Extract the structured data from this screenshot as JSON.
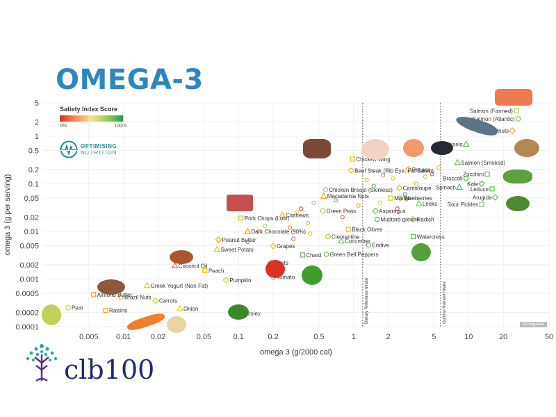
{
  "header": {
    "title": "OMEGA-3"
  },
  "legend": {
    "title": "Satiety Index Score",
    "min": "0%",
    "max": "100%"
  },
  "brand": {
    "line1": "OPTIMISING",
    "line2": "NUTRITION"
  },
  "footer_logo": {
    "text": "clb100"
  },
  "negative_badge": "20 negative",
  "reference_lines": [
    {
      "x": 1.2,
      "label": "Dietary Reference Intake"
    },
    {
      "x": 5.7,
      "label": "Optimal Nutrient Intake"
    }
  ],
  "colors": {
    "title": "#2e86c1",
    "low": "#d73027",
    "mid": "#f39c12",
    "high": "#1a9850"
  },
  "chart_data": {
    "type": "scatter",
    "xscale": "log",
    "yscale": "log",
    "xlabel": "omega 3 (g/2000 cal)",
    "ylabel": "omega 3 (g per serving)",
    "xlim": [
      0.002,
      50
    ],
    "ylim": [
      0.0001,
      5
    ],
    "xticks": [
      {
        "v": 0.005,
        "t": "0.005"
      },
      {
        "v": 0.01,
        "t": "0.01"
      },
      {
        "v": 0.02,
        "t": "0.02"
      },
      {
        "v": 0.05,
        "t": "0.05"
      },
      {
        "v": 0.1,
        "t": "0.1"
      },
      {
        "v": 0.2,
        "t": "0.2"
      },
      {
        "v": 0.5,
        "t": "0.5"
      },
      {
        "v": 1,
        "t": "1"
      },
      {
        "v": 2,
        "t": "2"
      },
      {
        "v": 5,
        "t": "5"
      },
      {
        "v": 10,
        "t": "10"
      },
      {
        "v": 20,
        "t": "20"
      },
      {
        "v": 50,
        "t": "50"
      }
    ],
    "yticks": [
      {
        "v": 0.0001,
        "t": "0.0001"
      },
      {
        "v": 0.0002,
        "t": "0.0002"
      },
      {
        "v": 0.0005,
        "t": "0.0005"
      },
      {
        "v": 0.001,
        "t": "0.001"
      },
      {
        "v": 0.002,
        "t": "0.002"
      },
      {
        "v": 0.005,
        "t": "0.005"
      },
      {
        "v": 0.01,
        "t": "0.01"
      },
      {
        "v": 0.02,
        "t": "0.02"
      },
      {
        "v": 0.05,
        "t": "0.05"
      },
      {
        "v": 0.1,
        "t": "0.1"
      },
      {
        "v": 0.2,
        "t": "0.2"
      },
      {
        "v": 0.5,
        "t": "0.5"
      },
      {
        "v": 1,
        "t": "1"
      },
      {
        "v": 2,
        "t": "2"
      },
      {
        "v": 5,
        "t": "5"
      }
    ],
    "points": [
      {
        "name": "Salmon (Farmed)",
        "x": 26,
        "y": 3.4,
        "s": 0.7
      },
      {
        "name": "Salmon (Atlantic)",
        "x": 27,
        "y": 2.3,
        "s": 0.8
      },
      {
        "name": "Walnuts",
        "x": 24,
        "y": 1.3,
        "s": 0.4
      },
      {
        "name": "Mussels",
        "x": 9.5,
        "y": 0.68,
        "s": 0.85
      },
      {
        "name": "Chicken Wing",
        "x": 0.98,
        "y": 0.33,
        "s": 0.55
      },
      {
        "name": "Beef Steak (Rib Eye, Fat Eaten)",
        "x": 0.95,
        "y": 0.19,
        "s": 0.6
      },
      {
        "name": "Pecans",
        "x": 3.0,
        "y": 0.2,
        "s": 0.35
      },
      {
        "name": "Salmon (Smoked)",
        "x": 8.0,
        "y": 0.28,
        "s": 0.8
      },
      {
        "name": "Zucchini",
        "x": 14.5,
        "y": 0.16,
        "s": 0.85
      },
      {
        "name": "Broccoli",
        "x": 9.5,
        "y": 0.13,
        "s": 0.85
      },
      {
        "name": "Kale",
        "x": 13,
        "y": 0.1,
        "s": 0.85
      },
      {
        "name": "Spinach",
        "x": 8.3,
        "y": 0.085,
        "s": 0.9
      },
      {
        "name": "Lettuce",
        "x": 16,
        "y": 0.078,
        "s": 0.85
      },
      {
        "name": "Chicken Breast (Skinless)",
        "x": 0.57,
        "y": 0.075,
        "s": 0.6
      },
      {
        "name": "Cantaloupe",
        "x": 2.5,
        "y": 0.082,
        "s": 0.65
      },
      {
        "name": "Macadamia Nuts",
        "x": 0.55,
        "y": 0.055,
        "s": 0.35
      },
      {
        "name": "Mango",
        "x": 2.1,
        "y": 0.05,
        "s": 0.6
      },
      {
        "name": "Blueberries",
        "x": 2.55,
        "y": 0.05,
        "s": 0.65
      },
      {
        "name": "Arugula",
        "x": 17,
        "y": 0.052,
        "s": 0.85
      },
      {
        "name": "Leeks",
        "x": 3.7,
        "y": 0.038,
        "s": 0.8
      },
      {
        "name": "Sour Pickles",
        "x": 13,
        "y": 0.037,
        "s": 0.8
      },
      {
        "name": "Green Peas",
        "x": 0.54,
        "y": 0.027,
        "s": 0.7
      },
      {
        "name": "Asparagus",
        "x": 1.55,
        "y": 0.027,
        "s": 0.8
      },
      {
        "name": "Cashews",
        "x": 0.24,
        "y": 0.022,
        "s": 0.4
      },
      {
        "name": "Pork Chops (Loin)",
        "x": 0.105,
        "y": 0.019,
        "s": 0.6
      },
      {
        "name": "Mustard greens",
        "x": 1.6,
        "y": 0.018,
        "s": 0.85
      },
      {
        "name": "Radish",
        "x": 3.3,
        "y": 0.018,
        "s": 0.75
      },
      {
        "name": "Dark Chocolate (90%)",
        "x": 0.12,
        "y": 0.01,
        "s": 0.3
      },
      {
        "name": "Black Olives",
        "x": 0.9,
        "y": 0.011,
        "s": 0.5
      },
      {
        "name": "Clementine",
        "x": 0.6,
        "y": 0.0078,
        "s": 0.65
      },
      {
        "name": "Peanut Butter",
        "x": 0.067,
        "y": 0.0067,
        "s": 0.35
      },
      {
        "name": "Cucumber",
        "x": 0.78,
        "y": 0.0063,
        "s": 0.8
      },
      {
        "name": "Watercress",
        "x": 3.3,
        "y": 0.0078,
        "s": 0.85
      },
      {
        "name": "Endive",
        "x": 1.35,
        "y": 0.0052,
        "s": 0.85
      },
      {
        "name": "Grapes",
        "x": 0.2,
        "y": 0.0049,
        "s": 0.55
      },
      {
        "name": "Sweet Potato",
        "x": 0.065,
        "y": 0.0042,
        "s": 0.45
      },
      {
        "name": "Chard",
        "x": 0.36,
        "y": 0.0032,
        "s": 0.85
      },
      {
        "name": "Green Bell Peppers",
        "x": 0.58,
        "y": 0.0033,
        "s": 0.8
      },
      {
        "name": "Beets",
        "x": 0.19,
        "y": 0.0022,
        "s": 0.6
      },
      {
        "name": "Coconut Oil",
        "x": 0.028,
        "y": 0.0019,
        "s": 0.2
      },
      {
        "name": "Peach",
        "x": 0.051,
        "y": 0.0015,
        "s": 0.55
      },
      {
        "name": "Tomato",
        "x": 0.2,
        "y": 0.0011,
        "s": 0.75
      },
      {
        "name": "Pumpkin",
        "x": 0.078,
        "y": 0.00095,
        "s": 0.6
      },
      {
        "name": "Greek Yogurt (Non Fat)",
        "x": 0.016,
        "y": 0.00073,
        "s": 0.55
      },
      {
        "name": "Almond Butter",
        "x": 0.0055,
        "y": 0.00047,
        "s": 0.35
      },
      {
        "name": "Brazil Nuts",
        "x": 0.0095,
        "y": 0.00042,
        "s": 0.4
      },
      {
        "name": "Carrots",
        "x": 0.019,
        "y": 0.00035,
        "s": 0.65
      },
      {
        "name": "Onion",
        "x": 0.031,
        "y": 0.00024,
        "s": 0.55
      },
      {
        "name": "Raisins",
        "x": 0.007,
        "y": 0.00022,
        "s": 0.35
      },
      {
        "name": "Pear",
        "x": 0.0033,
        "y": 0.00025,
        "s": 0.6
      },
      {
        "name": "Parsley",
        "x": 0.1,
        "y": 0.00019,
        "s": 0.85
      }
    ]
  }
}
